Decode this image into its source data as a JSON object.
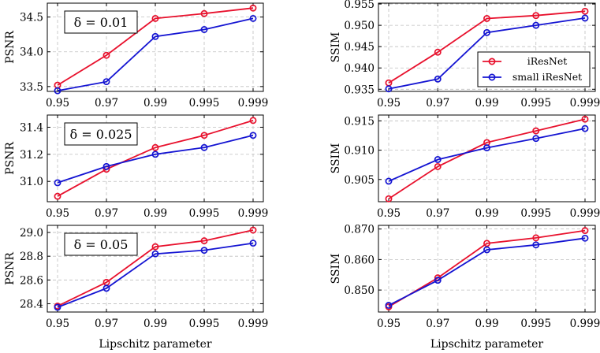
{
  "chart_data": [
    {
      "type": "line",
      "metric": "PSNR",
      "ylabel": "PSNR",
      "xlabel": "",
      "annotation": "δ = 0.01",
      "categories": [
        "0.95",
        "0.97",
        "0.99",
        "0.995",
        "0.999"
      ],
      "ylim": [
        33.43,
        34.7
      ],
      "yticks": [
        33.5,
        34.0,
        34.5
      ],
      "ytick_labels": [
        "33.5",
        "34.0",
        "34.5"
      ],
      "series": [
        {
          "name": "iResNet",
          "color": "#e8112d",
          "values": [
            33.52,
            33.95,
            34.48,
            34.55,
            34.63
          ]
        },
        {
          "name": "small iResNet",
          "color": "#1414d2",
          "values": [
            33.44,
            33.57,
            34.22,
            34.32,
            34.48
          ]
        }
      ]
    },
    {
      "type": "line",
      "metric": "SSIM",
      "ylabel": "SSIM",
      "xlabel": "",
      "categories": [
        "0.95",
        "0.97",
        "0.99",
        "0.995",
        "0.999"
      ],
      "ylim": [
        0.9345,
        0.9552
      ],
      "yticks": [
        0.935,
        0.94,
        0.945,
        0.95,
        0.955
      ],
      "ytick_labels": [
        "0.935",
        "0.940",
        "0.945",
        "0.950",
        "0.955"
      ],
      "legend": {
        "position": "bottom-right",
        "entries": [
          "iResNet",
          "small iResNet"
        ]
      },
      "series": [
        {
          "name": "iResNet",
          "color": "#e8112d",
          "values": [
            0.9365,
            0.9437,
            0.9516,
            0.9523,
            0.9533
          ]
        },
        {
          "name": "small iResNet",
          "color": "#1414d2",
          "values": [
            0.9351,
            0.9374,
            0.9483,
            0.95,
            0.9517
          ]
        }
      ]
    },
    {
      "type": "line",
      "metric": "PSNR",
      "ylabel": "PSNR",
      "xlabel": "",
      "annotation": "δ = 0.025",
      "categories": [
        "0.95",
        "0.97",
        "0.99",
        "0.995",
        "0.999"
      ],
      "ylim": [
        30.85,
        31.49
      ],
      "yticks": [
        31.0,
        31.2,
        31.4
      ],
      "ytick_labels": [
        "31.0",
        "31.2",
        "31.4"
      ],
      "series": [
        {
          "name": "iResNet",
          "color": "#e8112d",
          "values": [
            30.89,
            31.09,
            31.25,
            31.34,
            31.45
          ]
        },
        {
          "name": "small iResNet",
          "color": "#1414d2",
          "values": [
            30.99,
            31.11,
            31.2,
            31.25,
            31.34
          ]
        }
      ]
    },
    {
      "type": "line",
      "metric": "SSIM",
      "ylabel": "SSIM",
      "xlabel": "",
      "categories": [
        "0.95",
        "0.97",
        "0.99",
        "0.995",
        "0.999"
      ],
      "ylim": [
        0.9012,
        0.916
      ],
      "yticks": [
        0.905,
        0.91,
        0.915
      ],
      "ytick_labels": [
        "0.905",
        "0.910",
        "0.915"
      ],
      "series": [
        {
          "name": "iResNet",
          "color": "#e8112d",
          "values": [
            0.9017,
            0.9072,
            0.9113,
            0.9133,
            0.9153
          ]
        },
        {
          "name": "small iResNet",
          "color": "#1414d2",
          "values": [
            0.9047,
            0.9084,
            0.9104,
            0.912,
            0.9137
          ]
        }
      ]
    },
    {
      "type": "line",
      "metric": "PSNR",
      "ylabel": "PSNR",
      "xlabel": "Lipschitz parameter",
      "annotation": "δ = 0.05",
      "categories": [
        "0.95",
        "0.97",
        "0.99",
        "0.995",
        "0.999"
      ],
      "ylim": [
        28.33,
        29.06
      ],
      "yticks": [
        28.4,
        28.6,
        28.8,
        29.0
      ],
      "ytick_labels": [
        "28.4",
        "28.6",
        "28.8",
        "29.0"
      ],
      "series": [
        {
          "name": "iResNet",
          "color": "#e8112d",
          "values": [
            28.38,
            28.58,
            28.88,
            28.93,
            29.02
          ]
        },
        {
          "name": "small iResNet",
          "color": "#1414d2",
          "values": [
            28.37,
            28.53,
            28.82,
            28.85,
            28.91
          ]
        }
      ]
    },
    {
      "type": "line",
      "metric": "SSIM",
      "ylabel": "SSIM",
      "xlabel": "Lipschitz parameter",
      "categories": [
        "0.95",
        "0.97",
        "0.99",
        "0.995",
        "0.999"
      ],
      "ylim": [
        0.8428,
        0.8712
      ],
      "yticks": [
        0.85,
        0.86,
        0.87
      ],
      "ytick_labels": [
        "0.850",
        "0.860",
        "0.870"
      ],
      "series": [
        {
          "name": "iResNet",
          "color": "#e8112d",
          "values": [
            0.8445,
            0.854,
            0.8653,
            0.8671,
            0.8695
          ]
        },
        {
          "name": "small iResNet",
          "color": "#1414d2",
          "values": [
            0.845,
            0.8532,
            0.8632,
            0.8648,
            0.867
          ]
        }
      ]
    }
  ]
}
